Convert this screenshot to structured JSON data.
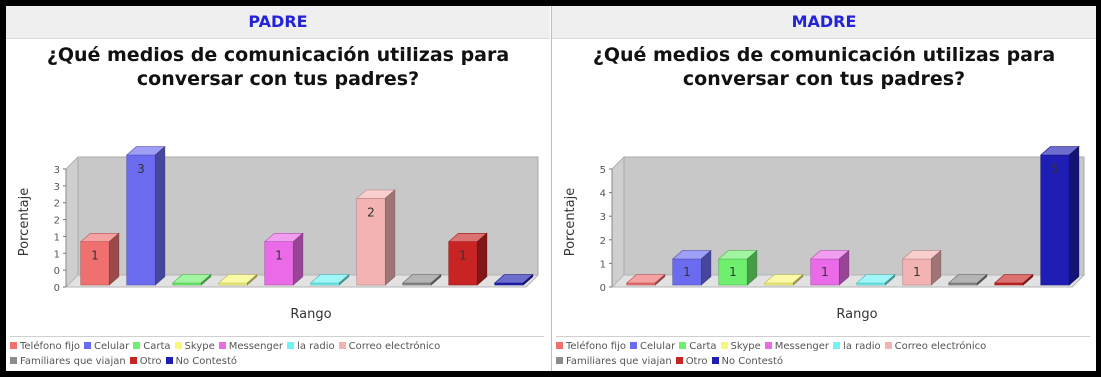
{
  "panels": [
    {
      "header": "PADRE",
      "title_line1": "¿Qué medios de comunicación utilizas para",
      "title_line2": "conversar con tus padres?",
      "chart_data": {
        "type": "bar",
        "title": "¿Qué medios de comunicación utilizas para conversar con tus padres?",
        "xlabel": "Rango",
        "ylabel": "Porcentaje",
        "ylim": [
          0,
          3
        ],
        "y_tick_labels": [
          "0",
          "0",
          "1",
          "1",
          "2",
          "2",
          "3",
          "3"
        ],
        "categories": [
          "Teléfono fijo",
          "Celular",
          "Carta",
          "Skype",
          "Messenger",
          "la radio",
          "Correo electrónico",
          "Familiares que viajan",
          "Otro",
          "No Contestó"
        ],
        "values": [
          1,
          3,
          0,
          0,
          1,
          0,
          2,
          0,
          1,
          0
        ],
        "labels": [
          "1",
          "3",
          "",
          "",
          "1",
          "",
          "2",
          "",
          "1",
          ""
        ],
        "colors": [
          "#f07070",
          "#6b6bf0",
          "#6ef06e",
          "#f7f77a",
          "#ea6ae8",
          "#6ef2f2",
          "#f4b3b3",
          "#8c8c8c",
          "#c82424",
          "#1e1eb4"
        ],
        "legend_position": "bottom"
      }
    },
    {
      "header": "MADRE",
      "title_line1": "¿Qué medios de comunicación utilizas para",
      "title_line2": "conversar con tus padres?",
      "chart_data": {
        "type": "bar",
        "title": "¿Qué medios de comunicación utilizas para conversar con tus padres?",
        "xlabel": "Rango",
        "ylabel": "Porcentaje",
        "ylim": [
          0,
          5
        ],
        "y_tick_labels": [
          "0",
          "1",
          "2",
          "3",
          "4",
          "5"
        ],
        "categories": [
          "Teléfono fijo",
          "Celular",
          "Carta",
          "Skype",
          "Messenger",
          "la radio",
          "Correo electrónico",
          "Familiares que viajan",
          "Otro",
          "No Contestó"
        ],
        "values": [
          0,
          1,
          1,
          0,
          1,
          0,
          1,
          0,
          0,
          5
        ],
        "labels": [
          "",
          "1",
          "1",
          "",
          "1",
          "",
          "1",
          "",
          "",
          "5"
        ],
        "colors": [
          "#f07070",
          "#6b6bf0",
          "#6ef06e",
          "#f7f77a",
          "#ea6ae8",
          "#6ef2f2",
          "#f4b3b3",
          "#8c8c8c",
          "#c82424",
          "#1e1eb4"
        ],
        "legend_position": "bottom"
      }
    }
  ],
  "legend": {
    "items": [
      {
        "label": "Teléfono fijo",
        "color": "#f07070"
      },
      {
        "label": "Celular",
        "color": "#6b6bf0"
      },
      {
        "label": "Carta",
        "color": "#6ef06e"
      },
      {
        "label": "Skype",
        "color": "#f7f77a"
      },
      {
        "label": "Messenger",
        "color": "#ea6ae8"
      },
      {
        "label": "la radio",
        "color": "#6ef2f2"
      },
      {
        "label": "Correo electrónico",
        "color": "#f4b3b3"
      },
      {
        "label": "Familiares que viajan",
        "color": "#8c8c8c"
      },
      {
        "label": "Otro",
        "color": "#c82424"
      },
      {
        "label": "No Contestó",
        "color": "#1e1eb4"
      }
    ]
  }
}
